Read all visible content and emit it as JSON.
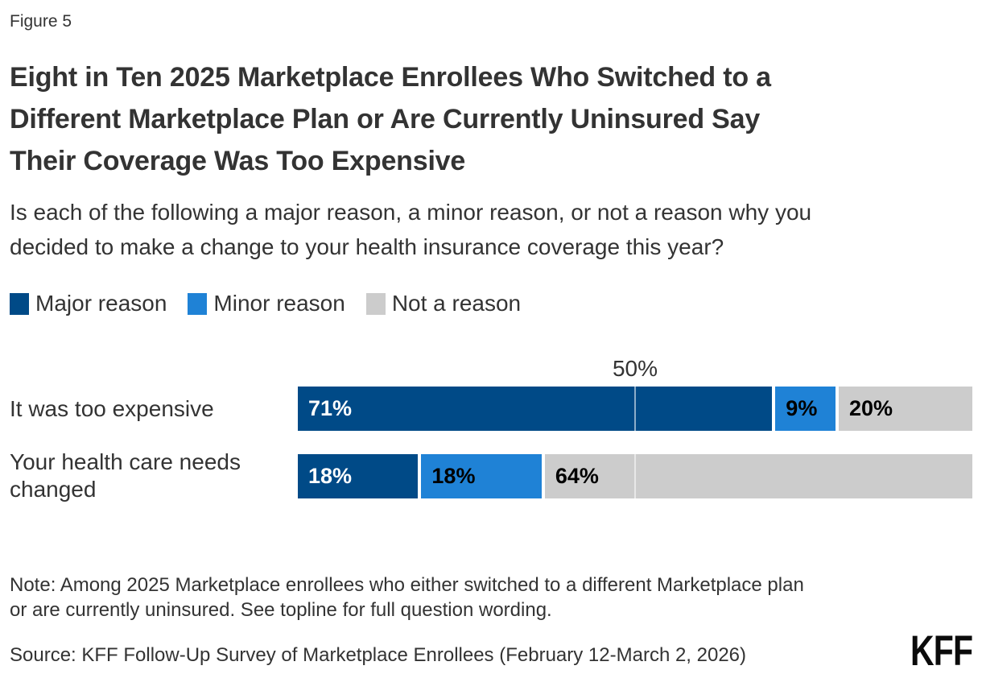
{
  "figure_label": "Figure 5",
  "title_lines": [
    "Eight in Ten 2025 Marketplace Enrollees Who Switched to a",
    "Different Marketplace Plan or Are Currently Uninsured Say",
    "Their Coverage Was Too Expensive"
  ],
  "subtitle_lines": [
    "Is each of the following a major reason, a minor reason, or not a reason why you",
    "decided to make a change to your health insurance coverage this year?"
  ],
  "chart_data": {
    "type": "bar",
    "orientation": "horizontal-stacked",
    "title": "Eight in Ten 2025 Marketplace Enrollees Who Switched to a Different Marketplace Plan or Are Currently Uninsured Say Their Coverage Was Too Expensive",
    "categories": [
      "It was too expensive",
      "Your health care needs changed"
    ],
    "series": [
      {
        "name": "Major reason",
        "color": "#004a87",
        "label_color": "#ffffff",
        "values": [
          71,
          18
        ]
      },
      {
        "name": "Minor reason",
        "color": "#1f82d6",
        "label_color": "#000000",
        "values": [
          9,
          18
        ]
      },
      {
        "name": "Not a reason",
        "color": "#cccccc",
        "label_color": "#000000",
        "values": [
          20,
          64
        ]
      }
    ],
    "value_suffix": "%",
    "xlim": [
      0,
      100
    ],
    "axis_ticks": [
      {
        "label": "50%",
        "position_pct": 50
      }
    ],
    "grid": "single vertical line at 50%, drawn over bars",
    "legend_position": "top-left"
  },
  "note_lines": [
    "Note: Among 2025 Marketplace enrollees who either switched to a different Marketplace plan",
    "or are currently uninsured. See topline for full question wording."
  ],
  "source": "Source: KFF Follow-Up Survey of Marketplace Enrollees (February 12-March 2, 2026)",
  "logo_text": "KFF",
  "colors": {
    "text": "#333333",
    "major_reason": "#004a87",
    "minor_reason": "#1f82d6",
    "not_a_reason": "#cccccc"
  }
}
